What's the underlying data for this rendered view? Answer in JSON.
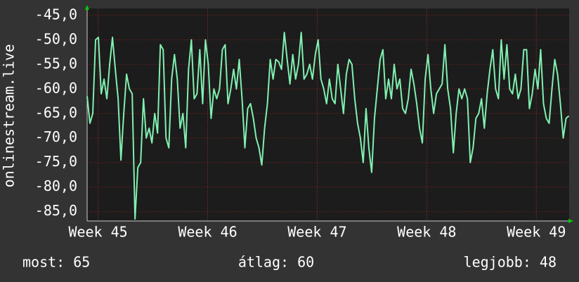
{
  "chart_data": {
    "type": "line",
    "y_label": "onlinestream.live",
    "color": "#80f0b0",
    "grid": true,
    "xlim": [
      -0.7,
      30.1
    ],
    "ylim": [
      -86.9,
      -43.6
    ],
    "xticks": [
      {
        "value": 0,
        "label": "Week 45"
      },
      {
        "value": 7,
        "label": "Week 46"
      },
      {
        "value": 14,
        "label": "Week 47"
      },
      {
        "value": 21,
        "label": "Week 48"
      },
      {
        "value": 28,
        "label": "Week 49"
      }
    ],
    "yticks": [
      {
        "value": -45,
        "label": "-45,0"
      },
      {
        "value": -50,
        "label": "-50,0"
      },
      {
        "value": -55,
        "label": "-55,0"
      },
      {
        "value": -60,
        "label": "-60,0"
      },
      {
        "value": -65,
        "label": "-65,0"
      },
      {
        "value": -70,
        "label": "-70,0"
      },
      {
        "value": -75,
        "label": "-75,0"
      },
      {
        "value": -80,
        "label": "-80,0"
      },
      {
        "value": -85,
        "label": "-85,0"
      }
    ],
    "x": [
      -0.7,
      -0.52,
      -0.34,
      -0.16,
      0.02,
      0.2,
      0.38,
      0.56,
      0.74,
      0.92,
      1.1,
      1.28,
      1.46,
      1.64,
      1.82,
      2,
      2.18,
      2.36,
      2.54,
      2.72,
      2.9,
      3.08,
      3.26,
      3.44,
      3.62,
      3.8,
      3.98,
      4.16,
      4.34,
      4.52,
      4.7,
      4.88,
      5.06,
      5.24,
      5.42,
      5.6,
      5.78,
      5.96,
      6.14,
      6.32,
      6.5,
      6.68,
      6.86,
      7.04,
      7.22,
      7.4,
      7.58,
      7.76,
      7.94,
      8.12,
      8.3,
      8.48,
      8.66,
      8.84,
      9.02,
      9.2,
      9.38,
      9.56,
      9.74,
      9.92,
      10.1,
      10.28,
      10.46,
      10.64,
      10.82,
      11,
      11.18,
      11.36,
      11.54,
      11.72,
      11.9,
      12.08,
      12.26,
      12.44,
      12.62,
      12.8,
      12.98,
      13.16,
      13.34,
      13.52,
      13.7,
      13.88,
      14.06,
      14.24,
      14.42,
      14.6,
      14.78,
      14.96,
      15.14,
      15.32,
      15.5,
      15.68,
      15.86,
      16.04,
      16.22,
      16.4,
      16.58,
      16.76,
      16.94,
      17.12,
      17.3,
      17.48,
      17.66,
      17.84,
      18.02,
      18.2,
      18.38,
      18.56,
      18.74,
      18.92,
      19.1,
      19.28,
      19.46,
      19.64,
      19.82,
      20,
      20.18,
      20.36,
      20.54,
      20.72,
      20.9,
      21.08,
      21.26,
      21.44,
      21.62,
      21.8,
      21.98,
      22.16,
      22.34,
      22.52,
      22.7,
      22.88,
      23.06,
      23.24,
      23.42,
      23.6,
      23.78,
      23.96,
      24.14,
      24.32,
      24.5,
      24.68,
      24.86,
      25.04,
      25.22,
      25.4,
      25.58,
      25.76,
      25.94,
      26.12,
      26.3,
      26.48,
      26.66,
      26.84,
      27.02,
      27.2,
      27.38,
      27.56,
      27.74,
      27.92,
      28.1,
      28.28,
      28.46,
      28.64,
      28.82,
      29,
      29.18,
      29.36,
      29.54,
      29.72,
      29.9,
      30.08
    ],
    "values": [
      -61.5,
      -67,
      -65,
      -50,
      -49.5,
      -61,
      -58,
      -62,
      -55,
      -49.5,
      -56,
      -62,
      -74.5,
      -65,
      -57,
      -60,
      -61,
      -86.5,
      -76,
      -75,
      -62,
      -70,
      -68,
      -71,
      -65,
      -69,
      -51,
      -52,
      -70,
      -72,
      -58,
      -53,
      -58,
      -68,
      -65,
      -72,
      -56,
      -50,
      -62,
      -61,
      -52,
      -63,
      -50,
      -55,
      -66,
      -60,
      -62,
      -60,
      -52,
      -51,
      -63,
      -60,
      -56,
      -60,
      -54,
      -62,
      -72,
      -64,
      -63,
      -66,
      -70,
      -72,
      -75.5,
      -68,
      -63,
      -54,
      -58,
      -54,
      -54.5,
      -56,
      -48.5,
      -54,
      -59,
      -53,
      -58,
      -55,
      -48.5,
      -58,
      -57,
      -55,
      -58,
      -53,
      -50,
      -58,
      -60,
      -63,
      -58,
      -62,
      -63,
      -55,
      -60,
      -65,
      -57,
      -54,
      -55,
      -62,
      -67,
      -70,
      -75,
      -64,
      -72,
      -77,
      -66,
      -60,
      -54,
      -52,
      -62,
      -58,
      -62,
      -55,
      -60,
      -58,
      -64,
      -65,
      -62,
      -56,
      -59,
      -63,
      -68,
      -71,
      -58,
      -53,
      -60,
      -65,
      -61,
      -60,
      -59,
      -51,
      -60,
      -64,
      -73,
      -65,
      -60,
      -62,
      -60,
      -62,
      -75,
      -72,
      -66,
      -65,
      -62,
      -68,
      -61,
      -56,
      -52,
      -60,
      -62,
      -50,
      -58,
      -51,
      -60,
      -61,
      -57,
      -62,
      -60,
      -52,
      -52,
      -64,
      -61,
      -56,
      -60,
      -52,
      -63,
      -66,
      -67,
      -60,
      -54,
      -57,
      -63,
      -70,
      -66,
      -65.5
    ],
    "footer": [
      "most: 65",
      "átlag: 60",
      "legjobb: 48"
    ]
  }
}
